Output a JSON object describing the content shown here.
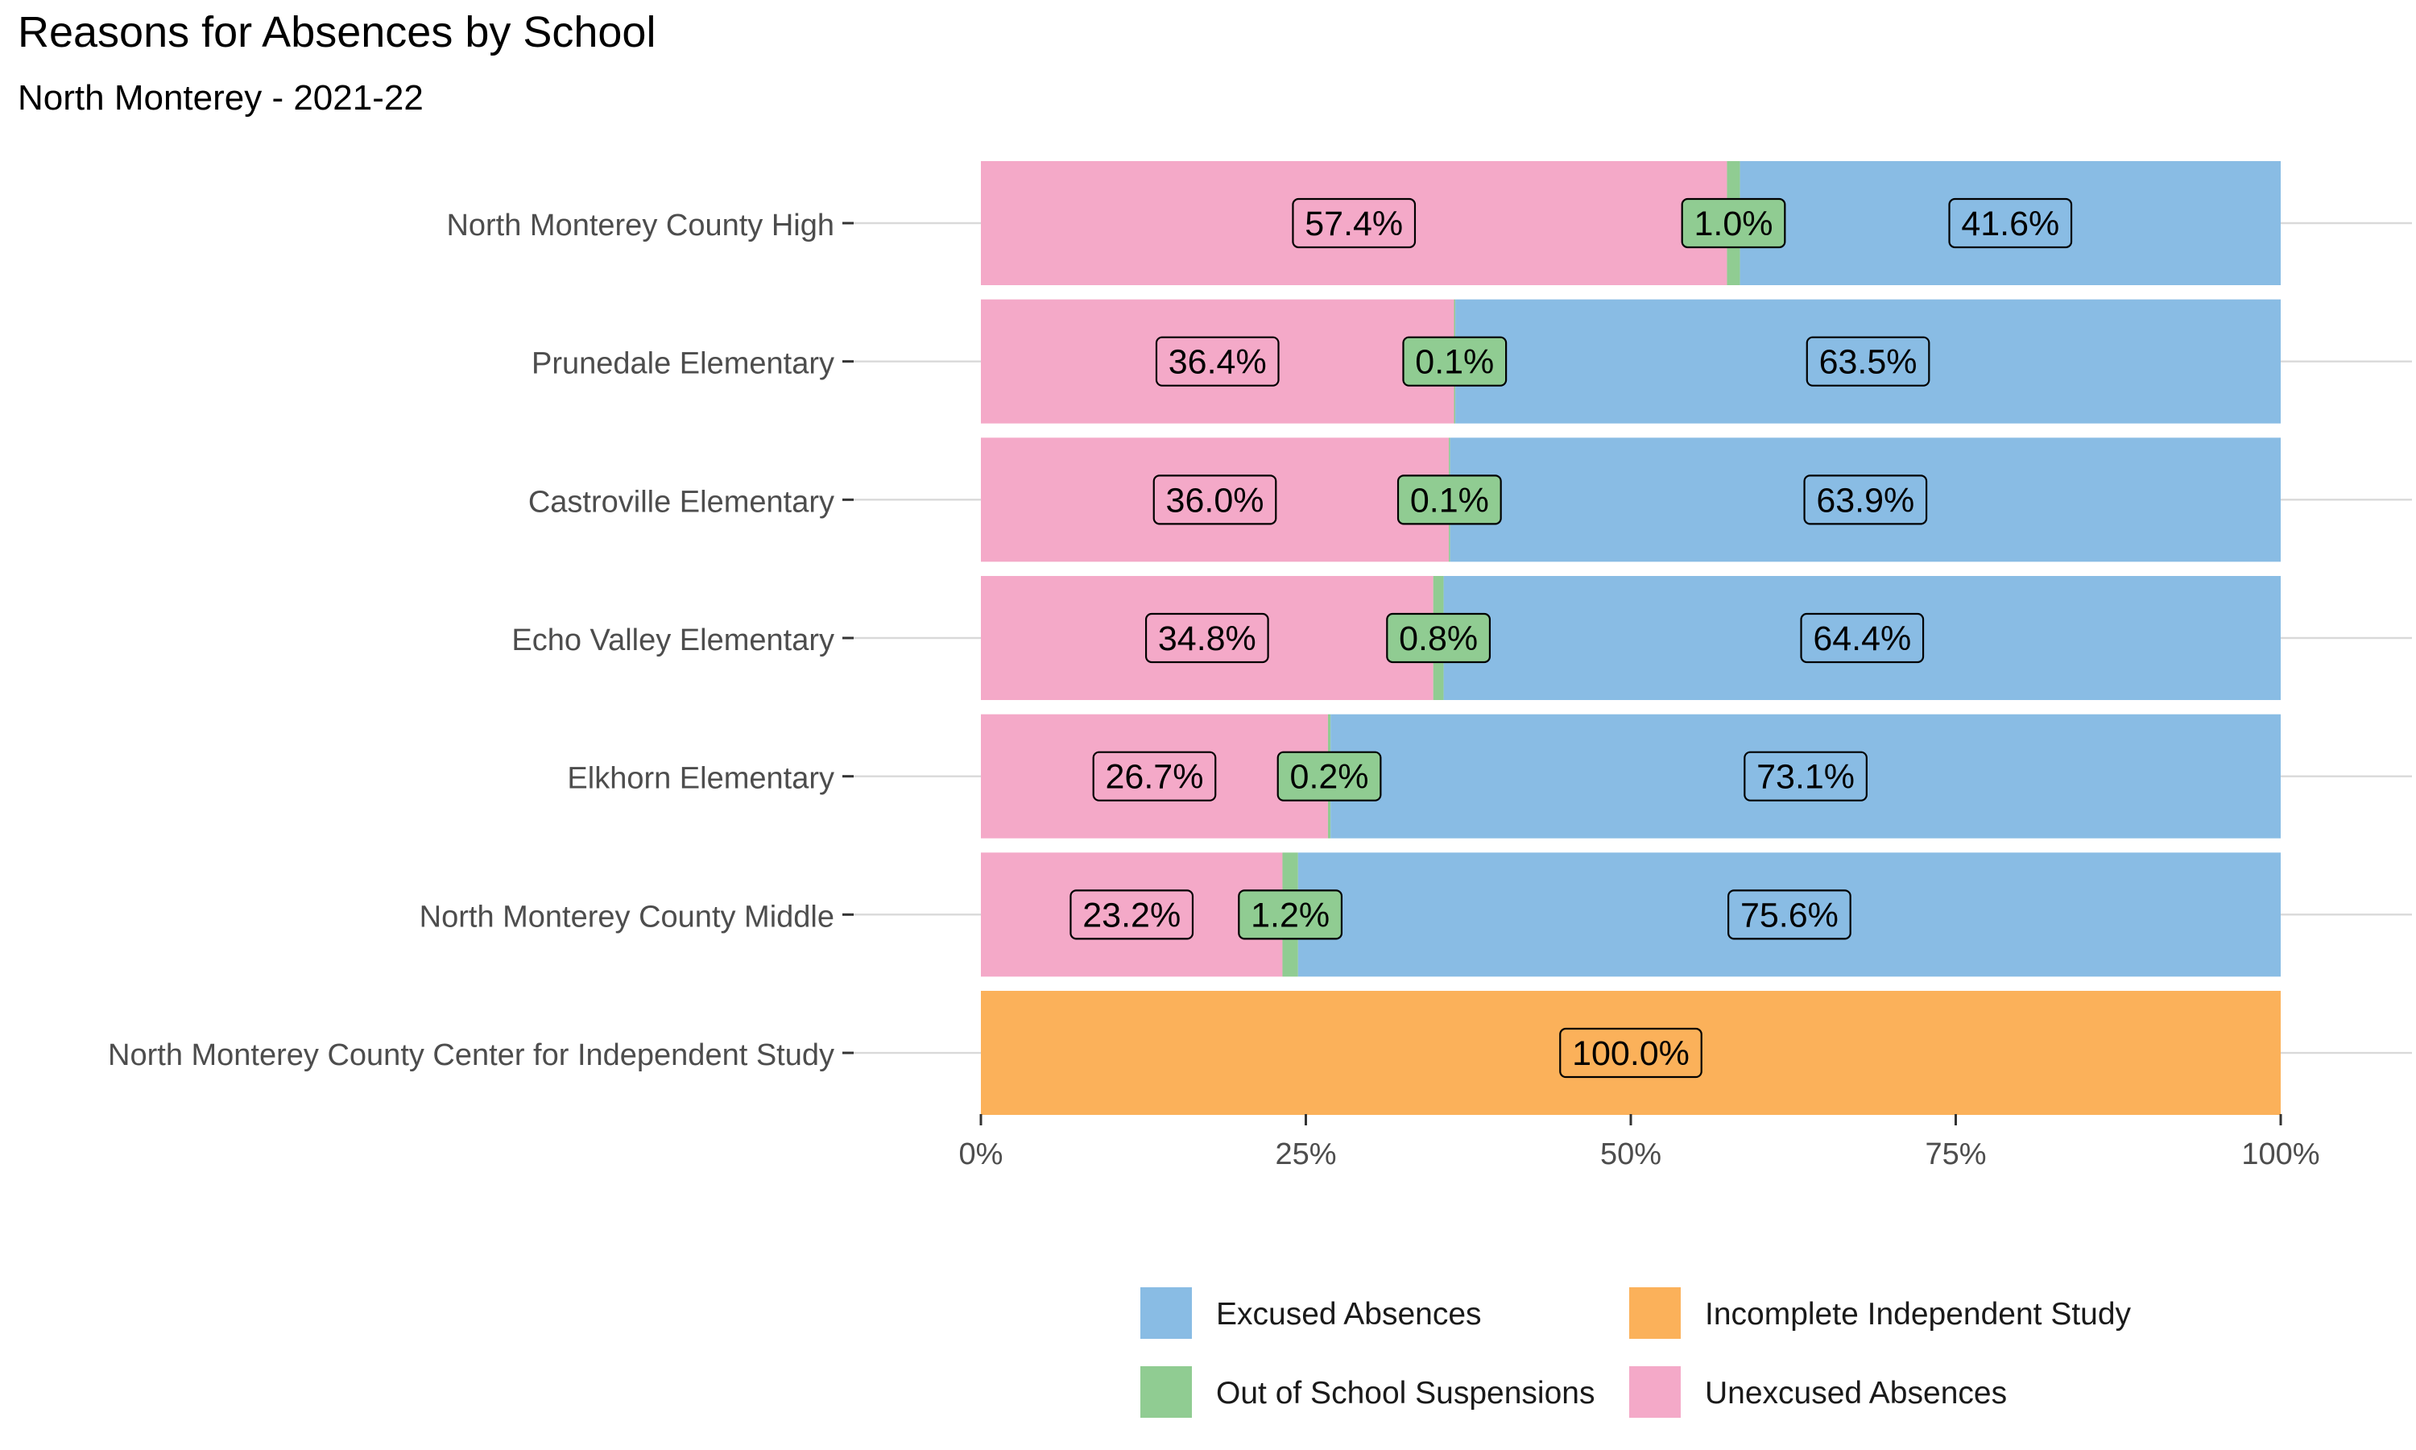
{
  "chart_data": {
    "type": "bar",
    "orientation": "horizontal",
    "stacked": "percent",
    "title": "Reasons for Absences by School",
    "subtitle": "North Monterey - 2021-22",
    "xlabel": "",
    "ylabel": "",
    "xlim": [
      0,
      100
    ],
    "x_ticks": [
      "0%",
      "25%",
      "50%",
      "75%",
      "100%"
    ],
    "grid": "horizontal major lines at categories",
    "legend_position": "bottom",
    "categories": [
      "North Monterey County High",
      "Prunedale Elementary",
      "Castroville Elementary",
      "Echo Valley Elementary",
      "Elkhorn Elementary",
      "North Monterey County Middle",
      "North Monterey County Center for Independent Study"
    ],
    "stack_order": [
      "Unexcused Absences",
      "Out of School Suspensions",
      "Incomplete Independent Study",
      "Excused Absences"
    ],
    "series": [
      {
        "name": "Unexcused Absences",
        "color": "#F4A9C8",
        "values": [
          57.4,
          36.4,
          36.0,
          34.8,
          26.7,
          23.2,
          0
        ],
        "labels": [
          "57.4%",
          "36.4%",
          "36.0%",
          "34.8%",
          "26.7%",
          "23.2%",
          ""
        ]
      },
      {
        "name": "Out of School Suspensions",
        "color": "#90CC92",
        "values": [
          1.0,
          0.1,
          0.1,
          0.8,
          0.2,
          1.2,
          0
        ],
        "labels": [
          "1.0%",
          "0.1%",
          "0.1%",
          "0.8%",
          "0.2%",
          "1.2%",
          ""
        ]
      },
      {
        "name": "Incomplete Independent Study",
        "color": "#FBB15A",
        "values": [
          0,
          0,
          0,
          0,
          0,
          0,
          100.0
        ],
        "labels": [
          "",
          "",
          "",
          "",
          "",
          "",
          "100.0%"
        ]
      },
      {
        "name": "Excused Absences",
        "color": "#89BCE4",
        "values": [
          41.6,
          63.5,
          63.9,
          64.4,
          73.1,
          75.6,
          0
        ],
        "labels": [
          "41.6%",
          "63.5%",
          "63.9%",
          "64.4%",
          "73.1%",
          "75.6%",
          ""
        ]
      }
    ],
    "legend": {
      "rows": [
        [
          "Excused Absences",
          "Incomplete Independent Study"
        ],
        [
          "Out of School Suspensions",
          "Unexcused Absences"
        ]
      ]
    }
  }
}
